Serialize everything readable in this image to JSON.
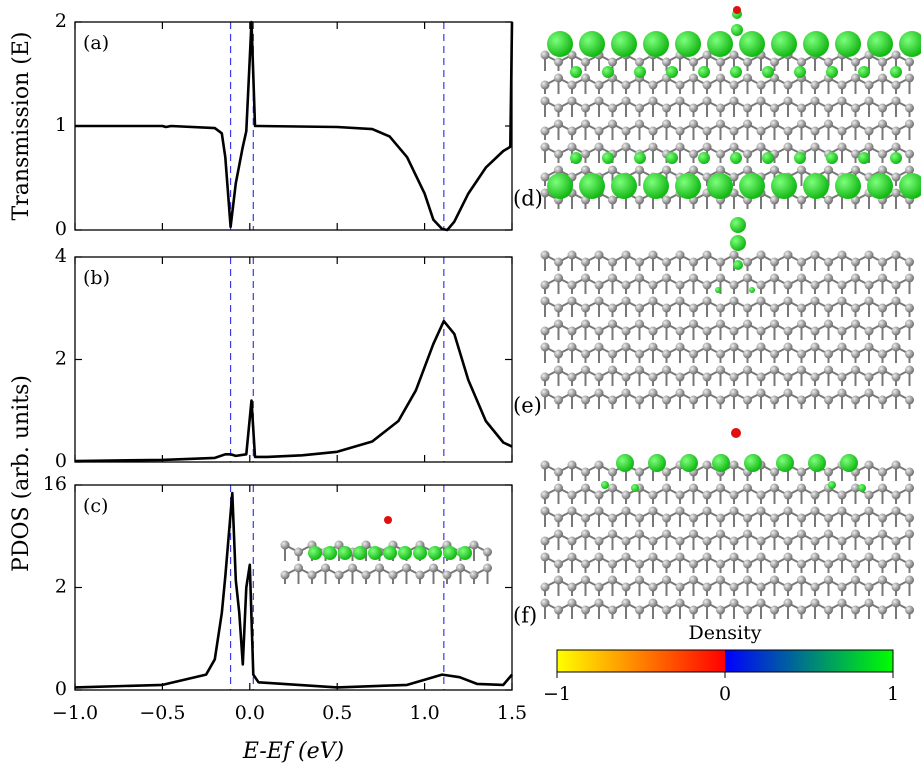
{
  "chart_data": [
    {
      "type": "line",
      "panel_label": "(a)",
      "ylabel": "Transmission (E)",
      "x": [
        -1.0,
        -0.5,
        -0.48,
        -0.45,
        -0.2,
        -0.16,
        -0.14,
        -0.11,
        -0.08,
        -0.04,
        -0.02,
        0.01,
        0.03,
        0.05,
        0.5,
        0.7,
        0.8,
        0.9,
        1.0,
        1.05,
        1.1,
        1.13,
        1.17,
        1.25,
        1.35,
        1.45,
        1.49,
        1.5
      ],
      "series": [
        {
          "color": "#000000",
          "values": [
            1.0,
            1.0,
            0.99,
            1.0,
            0.98,
            0.93,
            0.7,
            0.03,
            0.45,
            0.8,
            0.95,
            2.0,
            1.0,
            1.0,
            0.99,
            0.97,
            0.9,
            0.7,
            0.35,
            0.1,
            0.01,
            0.0,
            0.08,
            0.35,
            0.6,
            0.76,
            0.8,
            2.0
          ]
        }
      ],
      "xlim": [
        -1.0,
        1.5
      ],
      "xticks": [
        -1,
        -0.5,
        0,
        0.5,
        1,
        1.5
      ],
      "ylim": [
        0,
        2
      ],
      "yticks": [
        0,
        1,
        2
      ],
      "vlines": {
        "values": [
          -0.11,
          0.02,
          1.11
        ],
        "color": "#3a3aee"
      }
    },
    {
      "type": "line",
      "panel_label": "(b)",
      "ylabel": "PDOS (arb. units)",
      "x": [
        -1.0,
        -0.5,
        -0.2,
        -0.14,
        -0.11,
        -0.08,
        -0.02,
        0.01,
        0.03,
        0.1,
        0.3,
        0.5,
        0.7,
        0.85,
        0.95,
        1.05,
        1.11,
        1.17,
        1.25,
        1.35,
        1.45,
        1.5
      ],
      "series": [
        {
          "color": "#000000",
          "values": [
            0.02,
            0.04,
            0.08,
            0.15,
            0.15,
            0.12,
            0.15,
            1.2,
            0.1,
            0.1,
            0.13,
            0.2,
            0.4,
            0.8,
            1.4,
            2.3,
            2.75,
            2.5,
            1.6,
            0.8,
            0.38,
            0.3
          ]
        }
      ],
      "xlim": [
        -1.0,
        1.5
      ],
      "xticks": [
        -1,
        -0.5,
        0,
        0.5,
        1,
        1.5
      ],
      "ylim": [
        0,
        4
      ],
      "yticks": [
        0,
        2,
        4
      ],
      "vlines": {
        "values": [
          -0.11,
          0.02,
          1.11
        ],
        "color": "#3a3aee"
      }
    },
    {
      "type": "line",
      "panel_label": "(c)",
      "xlabel": "E-Ef (eV)",
      "x": [
        -1.0,
        -0.5,
        -0.25,
        -0.2,
        -0.16,
        -0.14,
        -0.1,
        -0.08,
        -0.06,
        -0.04,
        -0.02,
        0.0,
        0.02,
        0.05,
        0.5,
        0.9,
        1.0,
        1.1,
        1.2,
        1.3,
        1.45,
        1.5
      ],
      "series": [
        {
          "color": "#000000",
          "values": [
            0.05,
            0.1,
            0.3,
            0.6,
            1.5,
            3.5,
            14.9,
            3.0,
            1.5,
            0.5,
            2.0,
            5.1,
            0.3,
            0.15,
            0.05,
            0.1,
            0.2,
            0.3,
            0.25,
            0.12,
            0.1,
            0.3
          ]
        }
      ],
      "xlim": [
        -1.0,
        1.5
      ],
      "xticks": [
        {
          "value": -1,
          "label": "−1.0"
        },
        {
          "value": -0.5,
          "label": "−0.5"
        },
        {
          "value": 0,
          "label": "0.0"
        },
        {
          "value": 0.5,
          "label": "0.5"
        },
        {
          "value": 1,
          "label": "1.0"
        },
        {
          "value": 1.5,
          "label": "1.5"
        }
      ],
      "ylim": [
        0,
        16
      ],
      "yticks": [
        0,
        2,
        16
      ],
      "yscale": "piecewise",
      "vlines": {
        "values": [
          -0.11,
          0.02,
          1.11
        ],
        "color": "#3a3aee"
      }
    }
  ],
  "images": {
    "labels": [
      "(d)",
      "(e)",
      "(f)"
    ]
  },
  "colorbar": {
    "label": "Density",
    "lim": [
      -1,
      1
    ],
    "ticks": [
      {
        "value": -1,
        "label": "−1"
      },
      0,
      1
    ],
    "colors": [
      "#ffff00",
      "#ff0000",
      "#0000ff",
      "#00ff00"
    ]
  }
}
